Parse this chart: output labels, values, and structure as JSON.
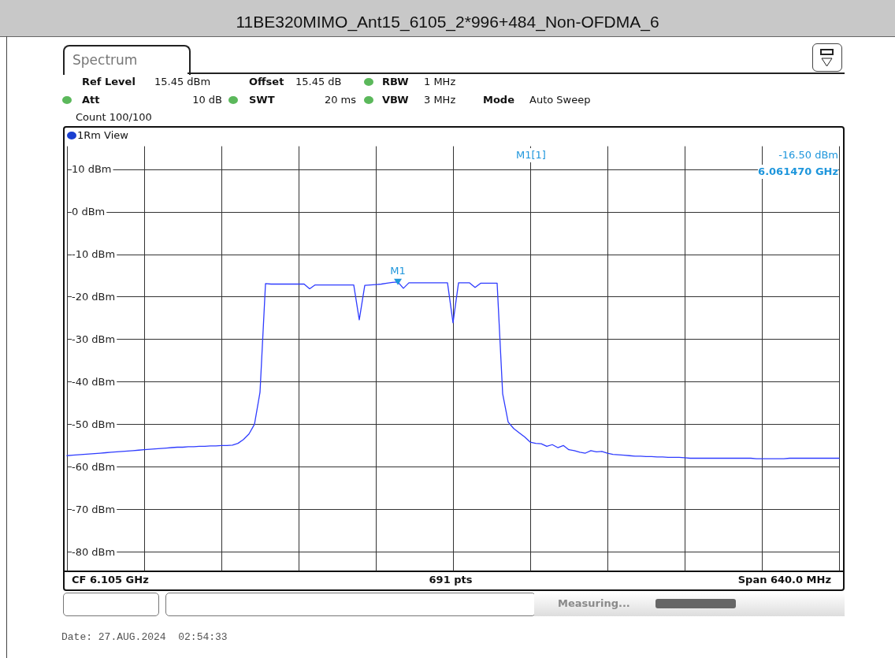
{
  "chart_data": {
    "type": "line",
    "title": "11BE320MIMO_Ant15_6105_2*996+484_Non-OFDMA_6",
    "categories": [
      null,
      null,
      null,
      null,
      null,
      null,
      null,
      null,
      null,
      null,
      null,
      null,
      null,
      null,
      null,
      null,
      null,
      null,
      null,
      null,
      null,
      null,
      null,
      null,
      null,
      null,
      null,
      null,
      null,
      null,
      null,
      null,
      null,
      null,
      null,
      null,
      null,
      null,
      null,
      null,
      null,
      null,
      null,
      null,
      null,
      null,
      null,
      null,
      null,
      null,
      null,
      null,
      null,
      null,
      null,
      null,
      null,
      null,
      null,
      null,
      null,
      null,
      null,
      null,
      null,
      null,
      null,
      null,
      null,
      null,
      null,
      null,
      null,
      null,
      null,
      null,
      null,
      null,
      null,
      null,
      null,
      null,
      null,
      null,
      null,
      null,
      null,
      null,
      null,
      null,
      null,
      null,
      null,
      null,
      null,
      null,
      null,
      null,
      null,
      null,
      null,
      null,
      null,
      null,
      null,
      null,
      null,
      null,
      null,
      null,
      null,
      null,
      null,
      null,
      null,
      null,
      null,
      null,
      null,
      null,
      null,
      null,
      null,
      null,
      null,
      null,
      null,
      null,
      null,
      null,
      null,
      null,
      null,
      null,
      null,
      null,
      null,
      null,
      null,
      null,
      null
    ],
    "series": [
      {
        "color": "#2f3cff",
        "values": [
          -57.4,
          -57.3,
          -57.2,
          -57.1,
          -57.0,
          -56.9,
          -56.8,
          -56.7,
          -56.6,
          -56.5,
          -56.4,
          -56.3,
          -56.2,
          -56.1,
          -56.0,
          -55.9,
          -55.8,
          -55.7,
          -55.6,
          -55.5,
          -55.4,
          -55.4,
          -55.3,
          -55.3,
          -55.2,
          -55.2,
          -55.1,
          -55.1,
          -55.0,
          -55.0,
          -54.9,
          -54.5,
          -53.6,
          -52.3,
          -50.0,
          -42.5,
          -16.9,
          -17.0,
          -17.0,
          -17.0,
          -17.0,
          -17.0,
          -17.0,
          -17.0,
          -18.1,
          -17.2,
          -17.2,
          -17.2,
          -17.2,
          -17.2,
          -17.2,
          -17.2,
          -17.2,
          -25.4,
          -17.3,
          -17.2,
          -17.1,
          -17.0,
          -16.8,
          -16.6,
          -16.5,
          -18.0,
          -16.7,
          -16.7,
          -16.7,
          -16.7,
          -16.7,
          -16.7,
          -16.7,
          -16.7,
          -26.1,
          -16.7,
          -16.7,
          -16.7,
          -17.8,
          -16.8,
          -16.8,
          -16.8,
          -16.8,
          -42.8,
          -49.5,
          -51.0,
          -52.0,
          -53.0,
          -54.2,
          -54.5,
          -54.6,
          -55.2,
          -54.8,
          -55.5,
          -55.0,
          -56.0,
          -56.2,
          -56.6,
          -56.8,
          -56.2,
          -56.5,
          -56.4,
          -56.8,
          -57.1,
          -57.2,
          -57.3,
          -57.4,
          -57.5,
          -57.5,
          -57.6,
          -57.6,
          -57.7,
          -57.7,
          -57.8,
          -57.8,
          -57.8,
          -57.9,
          -58.0,
          -58.0,
          -58.0,
          -58.0,
          -58.0,
          -58.0,
          -58.0,
          -58.0,
          -58.0,
          -58.0,
          -58.0,
          -58.0,
          -58.1,
          -58.1,
          -58.1,
          -58.1,
          -58.1,
          -58.1,
          -58.0,
          -58.0,
          -58.0,
          -58.0,
          -58.0,
          -58.0,
          -58.0,
          -58.0,
          -58.0,
          -58.0
        ],
        "value_labels": [
          null,
          null,
          null,
          null,
          null,
          null,
          null,
          null,
          null,
          null,
          null,
          null,
          null,
          null,
          null,
          null,
          null,
          null,
          null,
          null,
          null,
          null,
          null,
          null,
          null,
          null,
          null,
          null,
          null,
          null,
          null,
          null,
          null,
          null,
          null,
          null,
          null,
          null,
          null,
          null,
          null,
          null,
          null,
          null,
          null,
          null,
          null,
          null,
          null,
          null,
          null,
          null,
          null,
          null,
          null,
          null,
          null,
          null,
          null,
          null,
          "M1",
          null,
          null,
          null,
          null,
          null,
          null,
          null,
          null,
          null,
          null,
          null,
          null,
          null,
          null,
          null,
          null,
          null,
          null,
          null,
          null,
          null,
          null,
          null,
          null,
          null,
          null,
          null,
          null,
          null,
          null,
          null,
          null,
          null,
          null,
          null,
          null,
          null,
          null,
          null,
          null,
          null,
          null,
          null,
          null,
          null,
          null,
          null,
          null,
          null,
          null,
          null,
          null,
          null,
          null,
          null,
          null,
          null,
          null,
          null,
          null,
          null,
          null,
          null,
          null,
          null,
          null,
          null,
          null,
          null,
          null,
          null,
          null,
          null,
          null,
          null,
          null,
          null,
          null,
          null,
          null
        ]
      }
    ],
    "ylim": [
      -84.55,
      15.45
    ],
    "yticks": [
      {
        "value": 10,
        "label": "10 dBm"
      },
      {
        "value": 0,
        "label": "0 dBm"
      },
      {
        "value": -10,
        "label": "-10 dBm"
      },
      {
        "value": -20,
        "label": "-20 dBm"
      },
      {
        "value": -30,
        "label": "-30 dBm"
      },
      {
        "value": -40,
        "label": "-40 dBm"
      },
      {
        "value": -50,
        "label": "-50 dBm"
      },
      {
        "value": -60,
        "label": "-60 dBm"
      },
      {
        "value": -70,
        "label": "-70 dBm"
      },
      {
        "value": -80,
        "label": "-80 dBm"
      }
    ],
    "grid": true,
    "line_style": "solid",
    "tick_labels": "y",
    "annotations": [
      "Spectrum",
      "Ref Level",
      "15.45 dBm",
      "Offset",
      "15.45 dB",
      "RBW",
      "1 MHz",
      "Att",
      "10 dB",
      "SWT",
      "20 ms",
      "VBW",
      "3 MHz",
      "Mode",
      "Auto Sweep",
      "Count 100/100",
      "1Rm View",
      "M1[1]",
      "-16.50 dBm",
      "6.061470 GHz",
      "CF 6.105 GHz",
      "691 pts",
      "Span 640.0 MHz",
      "Measuring...",
      "Date: 27.AUG.2024  02:54:33"
    ]
  }
}
